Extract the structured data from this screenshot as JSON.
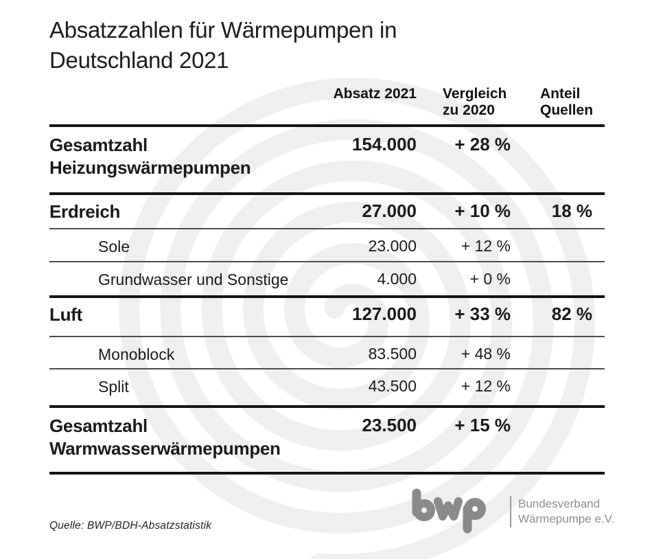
{
  "chart_data": {
    "type": "table",
    "title": "Absatzzahlen für Wärmepumpen in Deutschland 2021",
    "columns": [
      {
        "l1": "Absatz 2021",
        "l2": ""
      },
      {
        "l1": "Vergleich",
        "l2": "zu 2020"
      },
      {
        "l1": "Anteil",
        "l2": "Quellen"
      }
    ],
    "rows": [
      {
        "label": "Gesamtzahl Heizungswärmepumpen",
        "absatz": "154.000",
        "vergleich": "+ 28 %",
        "anteil": "",
        "value": 154000,
        "change_pct": 28,
        "share_pct": null,
        "style": "total"
      },
      {
        "label": "Erdreich",
        "absatz": "27.000",
        "vergleich": "+ 10 %",
        "anteil": "18 %",
        "value": 27000,
        "change_pct": 10,
        "share_pct": 18,
        "style": "section"
      },
      {
        "label": "Sole",
        "absatz": "23.000",
        "vergleich": "+ 12 %",
        "anteil": "",
        "value": 23000,
        "change_pct": 12,
        "share_pct": null,
        "style": "sub"
      },
      {
        "label": "Grundwasser und Sonstige",
        "absatz": "4.000",
        "vergleich": "+ 0 %",
        "anteil": "",
        "value": 4000,
        "change_pct": 0,
        "share_pct": null,
        "style": "sub"
      },
      {
        "label": "Luft",
        "absatz": "127.000",
        "vergleich": "+ 33 %",
        "anteil": "82 %",
        "value": 127000,
        "change_pct": 33,
        "share_pct": 82,
        "style": "section"
      },
      {
        "label": "Monoblock",
        "absatz": "83.500",
        "vergleich": "+ 48 %",
        "anteil": "",
        "value": 83500,
        "change_pct": 48,
        "share_pct": null,
        "style": "sub"
      },
      {
        "label": "Split",
        "absatz": "43.500",
        "vergleich": "+ 12 %",
        "anteil": "",
        "value": 43500,
        "change_pct": 12,
        "share_pct": null,
        "style": "sub"
      },
      {
        "label": "Gesamtzahl Warmwasserwärmepumpen",
        "absatz": "23.500",
        "vergleich": "+ 15 %",
        "anteil": "",
        "value": 23500,
        "change_pct": 15,
        "share_pct": null,
        "style": "total"
      }
    ],
    "layout_hints": {
      "thick_rule_color": "#141414",
      "thin_rule_color": "#4d4d4d",
      "watermark": "spiral"
    }
  },
  "footer": {
    "source": "Quelle: BWP/BDH-Absatzstatistik",
    "logo": {
      "wordmark": "bwp",
      "org_line1": "Bundesverband",
      "org_line2": "Wärmepumpe e.V."
    }
  },
  "colors": {
    "text": "#1a1a1a",
    "rule_thick": "#141414",
    "rule_thin": "#4d4d4d",
    "watermark_gray": "#efefef",
    "logo_gray": "#8a8a8a"
  }
}
